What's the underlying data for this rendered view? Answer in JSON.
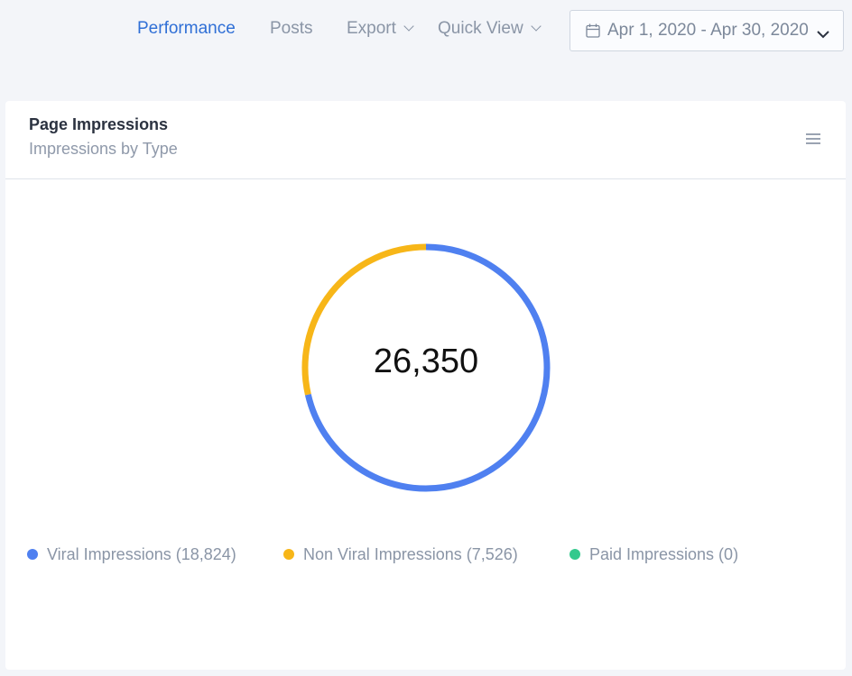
{
  "nav": {
    "performance": "Performance",
    "posts": "Posts",
    "export": "Export",
    "quick_view": "Quick View",
    "date_range": "Apr 1, 2020 - Apr 30, 2020"
  },
  "card": {
    "title": "Page Impressions",
    "subtitle": "Impressions by Type",
    "total": "26,350"
  },
  "legend": [
    {
      "label": "Viral Impressions (18,824)",
      "color": "#4f80f0"
    },
    {
      "label": "Non Viral Impressions (7,526)",
      "color": "#f7b618"
    },
    {
      "label": "Paid Impressions (0)",
      "color": "#33c98d"
    }
  ],
  "chart_data": {
    "type": "pie",
    "categories": [
      "Viral Impressions",
      "Non Viral Impressions",
      "Paid Impressions"
    ],
    "values": [
      18824,
      7526,
      0
    ],
    "colors": [
      "#4f80f0",
      "#f7b618",
      "#33c98d"
    ],
    "title": "",
    "center_label": "26,350"
  }
}
